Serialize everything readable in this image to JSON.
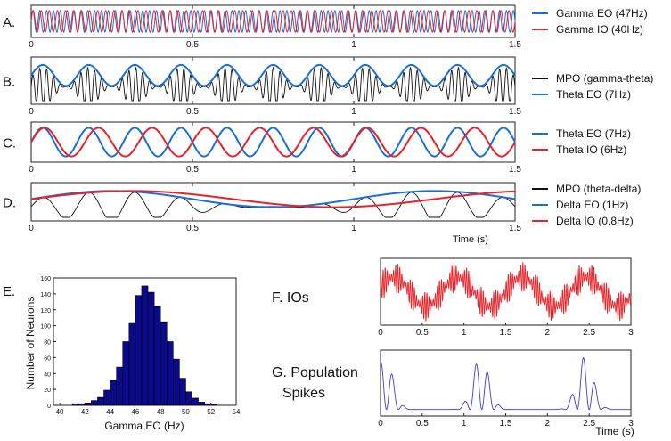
{
  "colors": {
    "blue": "#1a6fd6",
    "red": "#e8212b",
    "black": "#111111",
    "navy": "#0a0a8a",
    "gray": "#444444",
    "light_red": "#e3242b",
    "light_blue": "#3d3ddb"
  },
  "chart_data": [
    {
      "id": "A",
      "type": "line",
      "label": "A.",
      "xlim": [
        0,
        1.5
      ],
      "tick_labels": [
        "0",
        "0.5",
        "1",
        "1.5"
      ],
      "xlabel": "",
      "series": [
        {
          "name": "Gamma EO (47Hz)",
          "kind": "sine",
          "freq": 47,
          "amp": 1.0,
          "color": "blue"
        },
        {
          "name": "Gamma IO  (40Hz)",
          "kind": "sine",
          "freq": 40,
          "amp": 1.0,
          "color": "red"
        }
      ]
    },
    {
      "id": "B",
      "type": "line",
      "label": "B.",
      "xlim": [
        0,
        1.5
      ],
      "tick_labels": [
        "0",
        "0.5",
        "1",
        "1.5"
      ],
      "xlabel": "",
      "series": [
        {
          "name": "MPO (gamma-theta)",
          "kind": "mpo",
          "carrier_freq": 47,
          "env_freq": 7,
          "color": "black"
        },
        {
          "name": "Theta EO (7Hz)",
          "kind": "sine",
          "freq": 7,
          "amp": 0.6,
          "offset": 0.3,
          "color": "blue"
        }
      ]
    },
    {
      "id": "C",
      "type": "line",
      "label": "C.",
      "xlim": [
        0,
        1.5
      ],
      "tick_labels": [
        "0",
        "0.5",
        "1",
        "1.5"
      ],
      "xlabel": "",
      "series": [
        {
          "name": "Theta EO (7Hz)",
          "kind": "sine",
          "freq": 7,
          "amp": 1.0,
          "color": "blue"
        },
        {
          "name": "Theta IO  (6Hz)",
          "kind": "sine",
          "freq": 6,
          "amp": 1.0,
          "color": "red"
        }
      ]
    },
    {
      "id": "D",
      "type": "line",
      "label": "D.",
      "xlim": [
        0,
        1.5
      ],
      "tick_labels": [
        "0",
        "0.5",
        "1",
        "1.5"
      ],
      "xlabel": "Time (s)",
      "series": [
        {
          "name": "MPO (theta-delta)",
          "kind": "mpo",
          "carrier_freq": 7,
          "env_freq": 1,
          "color": "black"
        },
        {
          "name": "Delta EO (1Hz)",
          "kind": "sine",
          "freq": 1,
          "amp": 0.6,
          "offset": 0.2,
          "color": "blue"
        },
        {
          "name": "Delta IO  (0.8Hz)",
          "kind": "sine",
          "freq": 0.8,
          "amp": 0.6,
          "offset": 0.2,
          "color": "red"
        }
      ]
    },
    {
      "id": "E",
      "type": "bar",
      "label": "E.",
      "xlabel": "Gamma EO (Hz)",
      "ylabel": "Number of Neurons",
      "xlim": [
        39.5,
        54
      ],
      "ylim": [
        0,
        160
      ],
      "x_ticks": [
        40,
        42,
        44,
        46,
        48,
        50,
        52,
        54
      ],
      "y_ticks": [
        0,
        20,
        40,
        60,
        80,
        100,
        120,
        140,
        160
      ],
      "bin_width": 0.5,
      "bin_starts": [
        40.5,
        41,
        41.5,
        42,
        42.5,
        43,
        43.5,
        44,
        44.5,
        45,
        45.5,
        46,
        46.5,
        47,
        47.5,
        48,
        48.5,
        49,
        49.5,
        50,
        50.5,
        51,
        51.5,
        52,
        52.5
      ],
      "values": [
        0,
        2,
        2,
        3,
        6,
        10,
        19,
        31,
        48,
        80,
        104,
        138,
        150,
        142,
        124,
        105,
        80,
        58,
        34,
        17,
        9,
        4,
        2,
        1,
        0
      ],
      "color": "navy"
    },
    {
      "id": "F",
      "type": "line",
      "label": "F. IOs",
      "xlim": [
        0,
        3
      ],
      "x_ticks": [
        "0",
        "0.5",
        "1",
        "1.5",
        "2",
        "2.5",
        "3"
      ],
      "xlabel": "",
      "series": [
        {
          "name": "",
          "kind": "ios",
          "color": "light_red"
        }
      ]
    },
    {
      "id": "G",
      "type": "line",
      "label_line1": "G. Population",
      "label_line2": "Spikes",
      "xlim": [
        0,
        3
      ],
      "x_ticks": [
        "0",
        "0.5",
        "1",
        "1.5",
        "2",
        "2.5",
        "3"
      ],
      "xlabel": "Time (s)",
      "series": [
        {
          "name": "",
          "kind": "spikes",
          "burst_centers": [
            0.05,
            1.2,
            2.45
          ],
          "color": "light_blue"
        }
      ]
    }
  ]
}
